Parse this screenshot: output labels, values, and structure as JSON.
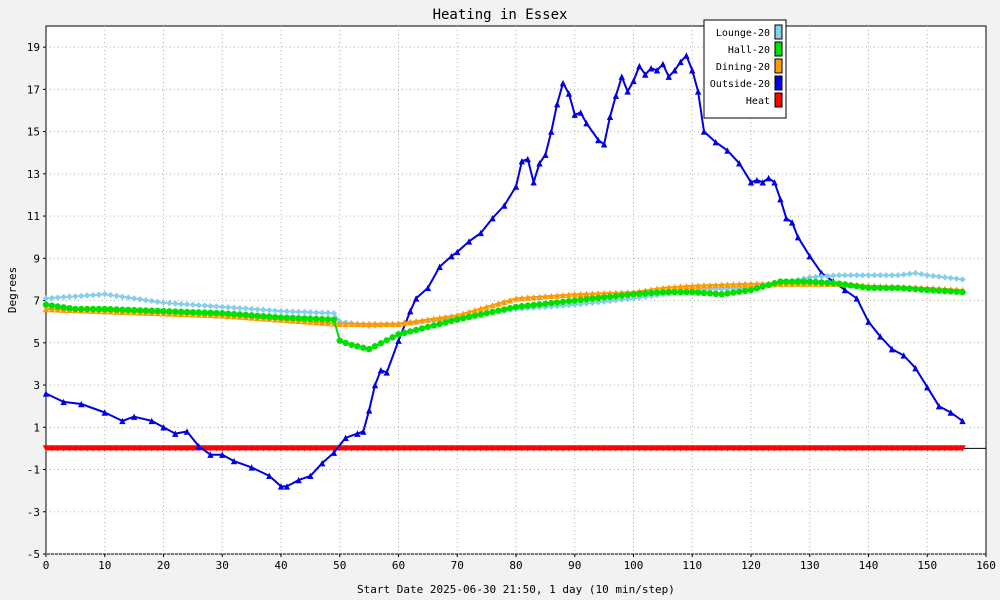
{
  "chart_data": {
    "type": "line",
    "title": "Heating in Essex",
    "xlabel": "Start Date 2025-06-30 21:50, 1 day (10 min/step)",
    "ylabel": "Degrees",
    "xlim": [
      0,
      160
    ],
    "ylim": [
      -5,
      20
    ],
    "xticks": [
      0,
      10,
      20,
      30,
      40,
      50,
      60,
      70,
      80,
      90,
      100,
      110,
      120,
      130,
      140,
      150,
      160
    ],
    "yticks": [
      -5,
      -3,
      -1,
      1,
      3,
      5,
      7,
      9,
      11,
      13,
      15,
      17,
      19
    ],
    "grid": true,
    "legend": "top-right",
    "colors": {
      "background": "#f2f2f2",
      "plot_background": "#ffffff",
      "grid": "#b0b0b0"
    },
    "series": [
      {
        "name": "Lounge-20",
        "color": "#87ceeb",
        "marker": "diamond",
        "x": [
          0,
          10,
          20,
          30,
          40,
          49,
          50,
          55,
          60,
          70,
          80,
          90,
          100,
          110,
          120,
          125,
          130,
          135,
          140,
          145,
          148,
          150,
          156
        ],
        "y": [
          7.1,
          7.3,
          6.9,
          6.7,
          6.5,
          6.4,
          6.0,
          5.8,
          5.9,
          6.2,
          6.6,
          6.8,
          7.1,
          7.5,
          7.6,
          7.8,
          8.1,
          8.2,
          8.2,
          8.2,
          8.3,
          8.2,
          8.0
        ]
      },
      {
        "name": "Hall-20",
        "color": "#00e000",
        "marker": "circle",
        "x": [
          0,
          5,
          10,
          20,
          30,
          40,
          49,
          50,
          52,
          55,
          60,
          70,
          80,
          90,
          100,
          105,
          110,
          115,
          120,
          125,
          130,
          135,
          140,
          145,
          150,
          156
        ],
        "y": [
          6.8,
          6.6,
          6.6,
          6.5,
          6.4,
          6.2,
          6.1,
          5.1,
          4.9,
          4.7,
          5.4,
          6.1,
          6.7,
          7.0,
          7.3,
          7.4,
          7.4,
          7.3,
          7.5,
          7.9,
          7.9,
          7.8,
          7.6,
          7.6,
          7.5,
          7.4
        ]
      },
      {
        "name": "Dining-20",
        "color": "#ff9900",
        "marker": "triangle",
        "x": [
          0,
          10,
          20,
          30,
          40,
          50,
          55,
          60,
          70,
          80,
          90,
          100,
          105,
          110,
          120,
          125,
          130,
          135,
          140,
          150,
          156
        ],
        "y": [
          6.6,
          6.5,
          6.4,
          6.3,
          6.1,
          5.9,
          5.9,
          5.9,
          6.3,
          7.1,
          7.3,
          7.4,
          7.6,
          7.7,
          7.8,
          7.8,
          7.8,
          7.8,
          7.7,
          7.6,
          7.5
        ]
      },
      {
        "name": "Outside-20",
        "color": "#0000e0",
        "marker": "triangle",
        "x": [
          0,
          3,
          6,
          10,
          13,
          15,
          18,
          20,
          22,
          24,
          26,
          28,
          30,
          32,
          35,
          38,
          40,
          41,
          43,
          45,
          47,
          49,
          51,
          53,
          54,
          55,
          56,
          57,
          58,
          60,
          62,
          63,
          65,
          67,
          69,
          70,
          72,
          74,
          76,
          78,
          80,
          81,
          82,
          83,
          84,
          85,
          86,
          87,
          88,
          89,
          90,
          91,
          92,
          94,
          95,
          96,
          97,
          98,
          99,
          100,
          101,
          102,
          103,
          104,
          105,
          106,
          107,
          108,
          109,
          110,
          111,
          112,
          114,
          116,
          118,
          120,
          121,
          122,
          123,
          124,
          125,
          126,
          127,
          128,
          130,
          132,
          134,
          136,
          138,
          140,
          142,
          144,
          146,
          148,
          150,
          152,
          154,
          156
        ],
        "y": [
          2.6,
          2.2,
          2.1,
          1.7,
          1.3,
          1.5,
          1.3,
          1.0,
          0.7,
          0.8,
          0.1,
          -0.3,
          -0.3,
          -0.6,
          -0.9,
          -1.3,
          -1.8,
          -1.8,
          -1.5,
          -1.3,
          -0.7,
          -0.2,
          0.5,
          0.7,
          0.8,
          1.8,
          3.0,
          3.7,
          3.6,
          5.1,
          6.5,
          7.1,
          7.6,
          8.6,
          9.1,
          9.3,
          9.8,
          10.2,
          10.9,
          11.5,
          12.4,
          13.6,
          13.7,
          12.6,
          13.5,
          13.9,
          15.0,
          16.3,
          17.3,
          16.8,
          15.8,
          15.9,
          15.4,
          14.6,
          14.4,
          15.7,
          16.7,
          17.6,
          16.9,
          17.4,
          18.1,
          17.7,
          18.0,
          17.9,
          18.2,
          17.6,
          17.9,
          18.3,
          18.6,
          17.9,
          16.9,
          15.0,
          14.5,
          14.1,
          13.5,
          12.6,
          12.7,
          12.6,
          12.8,
          12.6,
          11.8,
          10.9,
          10.7,
          10.0,
          9.1,
          8.3,
          7.9,
          7.5,
          7.1,
          6.0,
          5.3,
          4.7,
          4.4,
          3.8,
          2.9,
          2.0,
          1.7,
          1.3
        ]
      },
      {
        "name": "Heat",
        "color": "#ff0000",
        "marker": "triangle-down",
        "x": [
          0,
          156
        ],
        "y": [
          0,
          0
        ]
      }
    ]
  }
}
